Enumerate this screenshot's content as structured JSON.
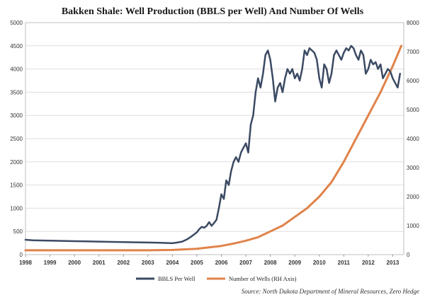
{
  "chart_data": {
    "type": "line",
    "title": "Bakken Shale: Well Production (BBLS per Well) And Number Of Wells",
    "source": "Source: North Dakota Department of Mineral Resources, Zero Hedge",
    "xlim": [
      1998.0,
      2013.45
    ],
    "x_ticks": [
      "1998",
      "1999",
      "2000",
      "2001",
      "2002",
      "2003",
      "2004",
      "2005",
      "2006",
      "2007",
      "2008",
      "2009",
      "2010",
      "2011",
      "2012",
      "2013"
    ],
    "y_left": {
      "ylim": [
        0,
        5000
      ],
      "ticks": [
        "0",
        "500",
        "1000",
        "1500",
        "2000",
        "2500",
        "3000",
        "3500",
        "4000",
        "4500",
        "5000"
      ]
    },
    "y_right": {
      "ylim": [
        0,
        8000
      ],
      "ticks": [
        "0",
        "1000",
        "2000",
        "3000",
        "4000",
        "5000",
        "6000",
        "7000",
        "8000"
      ]
    },
    "grid": true,
    "legend_position": "bottom-center",
    "series": [
      {
        "name": "BBLS Per Well",
        "axis": "left",
        "color": "#3b4a63",
        "x": [
          1998.0,
          1998.3,
          1998.6,
          1999.0,
          1999.5,
          2000.0,
          2000.5,
          2001.0,
          2001.5,
          2002.0,
          2002.5,
          2003.0,
          2003.5,
          2003.8,
          2004.0,
          2004.2,
          2004.4,
          2004.6,
          2004.8,
          2005.0,
          2005.1,
          2005.2,
          2005.3,
          2005.4,
          2005.5,
          2005.6,
          2005.7,
          2005.8,
          2005.9,
          2006.0,
          2006.1,
          2006.2,
          2006.3,
          2006.4,
          2006.5,
          2006.6,
          2006.7,
          2006.8,
          2006.9,
          2007.0,
          2007.1,
          2007.2,
          2007.3,
          2007.4,
          2007.5,
          2007.6,
          2007.7,
          2007.8,
          2007.9,
          2008.0,
          2008.1,
          2008.2,
          2008.3,
          2008.4,
          2008.5,
          2008.6,
          2008.7,
          2008.8,
          2008.9,
          2009.0,
          2009.1,
          2009.2,
          2009.3,
          2009.4,
          2009.5,
          2009.6,
          2009.7,
          2009.8,
          2009.9,
          2010.0,
          2010.1,
          2010.2,
          2010.3,
          2010.4,
          2010.5,
          2010.6,
          2010.7,
          2010.8,
          2010.9,
          2011.0,
          2011.1,
          2011.2,
          2011.3,
          2011.4,
          2011.5,
          2011.6,
          2011.7,
          2011.8,
          2011.9,
          2012.0,
          2012.1,
          2012.2,
          2012.3,
          2012.4,
          2012.5,
          2012.6,
          2012.7,
          2012.8,
          2012.9,
          2013.0,
          2013.1,
          2013.2,
          2013.3
        ],
        "values": [
          320,
          310,
          305,
          300,
          295,
          290,
          285,
          280,
          275,
          270,
          265,
          260,
          255,
          250,
          245,
          260,
          280,
          330,
          400,
          480,
          550,
          600,
          580,
          620,
          700,
          620,
          680,
          750,
          1000,
          1300,
          1200,
          1600,
          1500,
          1800,
          2000,
          2100,
          2000,
          2200,
          2300,
          2400,
          2200,
          2800,
          3000,
          3500,
          3800,
          3600,
          3900,
          4300,
          4400,
          4200,
          3800,
          3300,
          3600,
          3700,
          3500,
          3800,
          4000,
          3900,
          4000,
          3800,
          3900,
          3750,
          4000,
          4400,
          4300,
          4450,
          4400,
          4350,
          4200,
          3800,
          3600,
          4100,
          4000,
          3700,
          3900,
          4300,
          4400,
          4300,
          4200,
          4350,
          4450,
          4400,
          4500,
          4450,
          4300,
          4200,
          4400,
          4300,
          3900,
          4000,
          4200,
          4100,
          4150,
          4000,
          4100,
          3800,
          3900,
          4000,
          3950,
          3800,
          3700,
          3600,
          3900
        ],
        "points": [
          320,
          310,
          305,
          300,
          295,
          290,
          285,
          280,
          275,
          270,
          265,
          260,
          255,
          250,
          245,
          260,
          280,
          330,
          400,
          480,
          550,
          600,
          580,
          620,
          700,
          620,
          680,
          750,
          1000,
          1300,
          1200,
          1600,
          1500,
          1800,
          2000,
          2100,
          2000,
          2200,
          2300,
          2400,
          2200,
          2800,
          3000,
          3500,
          3800,
          3600,
          3900,
          4300,
          4400,
          4200,
          3800,
          3300,
          3600,
          3700,
          3500,
          3800,
          4000,
          3900,
          4000,
          3800,
          3900,
          3750,
          4000,
          4400,
          4300,
          4450,
          4400,
          4350,
          4200,
          3800,
          3600,
          4100,
          4000,
          3700,
          3900,
          4300,
          4400,
          4300,
          4200,
          4350,
          4450,
          4400,
          4500,
          4450,
          4300,
          4200,
          4400,
          4300,
          3900,
          4000,
          4200,
          4100,
          4150,
          4000,
          4100,
          3800,
          3900,
          4000,
          3950,
          3800,
          3700,
          3600,
          3900
        ]
      },
      {
        "name": "Number of Wells (RH Axis)",
        "axis": "right",
        "color": "#e0834a",
        "x": [
          1998.0,
          1999.0,
          2000.0,
          2001.0,
          2002.0,
          2003.0,
          2004.0,
          2005.0,
          2005.5,
          2006.0,
          2006.5,
          2007.0,
          2007.5,
          2008.0,
          2008.5,
          2009.0,
          2009.5,
          2010.0,
          2010.5,
          2011.0,
          2011.5,
          2012.0,
          2012.5,
          2013.0,
          2013.2,
          2013.35
        ],
        "values": [
          150,
          150,
          150,
          150,
          150,
          150,
          160,
          200,
          250,
          300,
          380,
          480,
          600,
          800,
          1000,
          1300,
          1600,
          2000,
          2500,
          3200,
          4000,
          4800,
          5600,
          6500,
          6900,
          7200
        ]
      }
    ]
  }
}
